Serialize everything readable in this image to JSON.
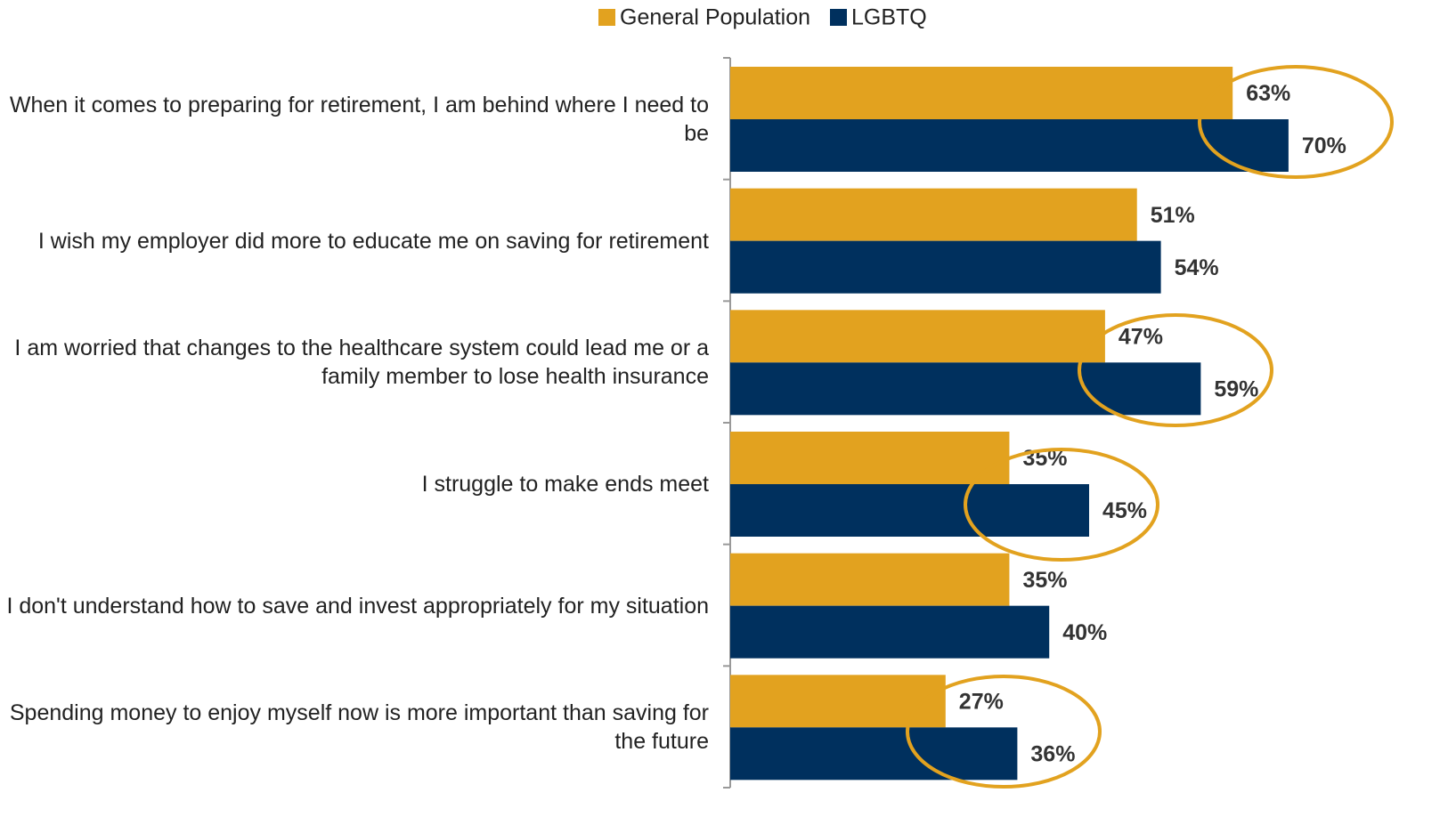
{
  "chart_data": {
    "type": "hbar",
    "categories": [
      "When it comes to preparing for retirement, I am behind where I need to be",
      "I wish my employer did more to educate me on saving for retirement",
      "I am worried that changes to the healthcare system could lead me or a family member to lose health insurance",
      "I struggle to make ends meet",
      "I don't understand how to save and invest appropriately for my situation",
      "Spending money to enjoy myself now is more important than saving for the future"
    ],
    "series": [
      {
        "name": "General Population",
        "color": "#e2a21f",
        "values": [
          63,
          51,
          47,
          35,
          35,
          27
        ],
        "value_labels": [
          "63%",
          "51%",
          "47%",
          "35%",
          "35%",
          "27%"
        ]
      },
      {
        "name": "LGBTQ",
        "color": "#00305e",
        "values": [
          70,
          54,
          59,
          45,
          40,
          36
        ],
        "value_labels": [
          "70%",
          "54%",
          "59%",
          "45%",
          "40%",
          "36%"
        ]
      }
    ],
    "xlim": [
      0,
      90
    ],
    "legend": "top"
  }
}
